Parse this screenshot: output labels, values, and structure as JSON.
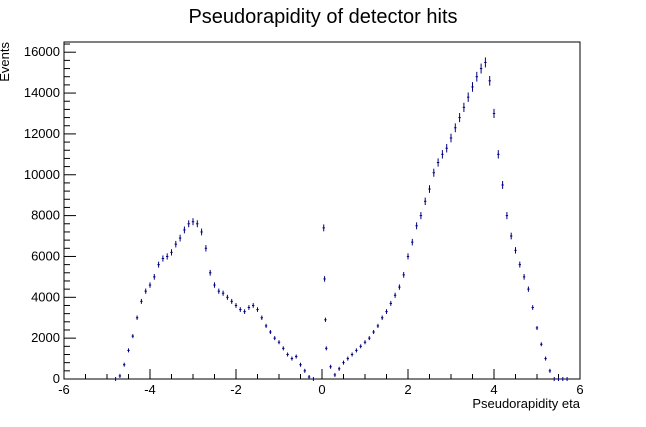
{
  "chart_data": {
    "type": "scatter",
    "title": "Pseudorapidity of detector hits",
    "xlabel": "Pseudorapidity eta",
    "ylabel": "Events",
    "xlim": [
      -6,
      6
    ],
    "ylim": [
      0,
      16500
    ],
    "x_ticks": [
      -6,
      -4,
      -2,
      0,
      2,
      4,
      6
    ],
    "y_ticks": [
      0,
      2000,
      4000,
      6000,
      8000,
      10000,
      12000,
      14000,
      16000
    ],
    "grid": false,
    "legend": "none",
    "marker_color": "#000080",
    "series": [
      {
        "x": [
          -4.8,
          -4.7,
          -4.6,
          -4.5,
          -4.4,
          -4.3,
          -4.2,
          -4.1,
          -4.0,
          -3.9,
          -3.8,
          -3.7,
          -3.6,
          -3.5,
          -3.4,
          -3.3,
          -3.2,
          -3.1,
          -3.0,
          -2.9,
          -2.8,
          -2.7,
          -2.6,
          -2.5,
          -2.4,
          -2.3,
          -2.2,
          -2.1,
          -2.0,
          -1.9,
          -1.8,
          -1.7,
          -1.6,
          -1.5,
          -1.4,
          -1.3,
          -1.2,
          -1.1,
          -1.0,
          -0.9,
          -0.8,
          -0.7,
          -0.6,
          -0.5,
          -0.4,
          -0.3,
          -0.2,
          0.04,
          0.06,
          0.08,
          0.1,
          0.2,
          0.3,
          0.4,
          0.5,
          0.6,
          0.7,
          0.8,
          0.9,
          1.0,
          1.1,
          1.2,
          1.3,
          1.4,
          1.5,
          1.6,
          1.7,
          1.8,
          1.9,
          2.0,
          2.1,
          2.2,
          2.3,
          2.4,
          2.5,
          2.6,
          2.7,
          2.8,
          2.9,
          3.0,
          3.1,
          3.2,
          3.3,
          3.4,
          3.5,
          3.6,
          3.7,
          3.8,
          3.9,
          4.0,
          4.1,
          4.2,
          4.3,
          4.4,
          4.5,
          4.6,
          4.7,
          4.8,
          4.9,
          5.0,
          5.1,
          5.2,
          5.3,
          5.4,
          5.5,
          5.6,
          5.7
        ],
        "y": [
          0,
          150,
          700,
          1400,
          2100,
          3000,
          3800,
          4300,
          4600,
          5000,
          5600,
          5900,
          6000,
          6200,
          6600,
          6900,
          7300,
          7600,
          7700,
          7600,
          7200,
          6400,
          5200,
          4600,
          4300,
          4200,
          4000,
          3800,
          3600,
          3400,
          3300,
          3500,
          3600,
          3400,
          3000,
          2600,
          2300,
          2000,
          1800,
          1500,
          1200,
          1000,
          1100,
          700,
          400,
          100,
          0,
          7400,
          4900,
          2900,
          1500,
          600,
          200,
          500,
          800,
          1000,
          1200,
          1400,
          1600,
          1800,
          2000,
          2300,
          2600,
          3000,
          3300,
          3700,
          4100,
          4500,
          5100,
          6000,
          6700,
          7500,
          8000,
          8700,
          9300,
          10100,
          10600,
          11000,
          11300,
          11800,
          12300,
          12800,
          13300,
          13800,
          14300,
          14800,
          15200,
          15500,
          14600,
          13000,
          11000,
          9500,
          8000,
          7000,
          6300,
          5600,
          5000,
          4400,
          3500,
          2500,
          1700,
          1000,
          400,
          0,
          0,
          0,
          0
        ]
      }
    ]
  }
}
